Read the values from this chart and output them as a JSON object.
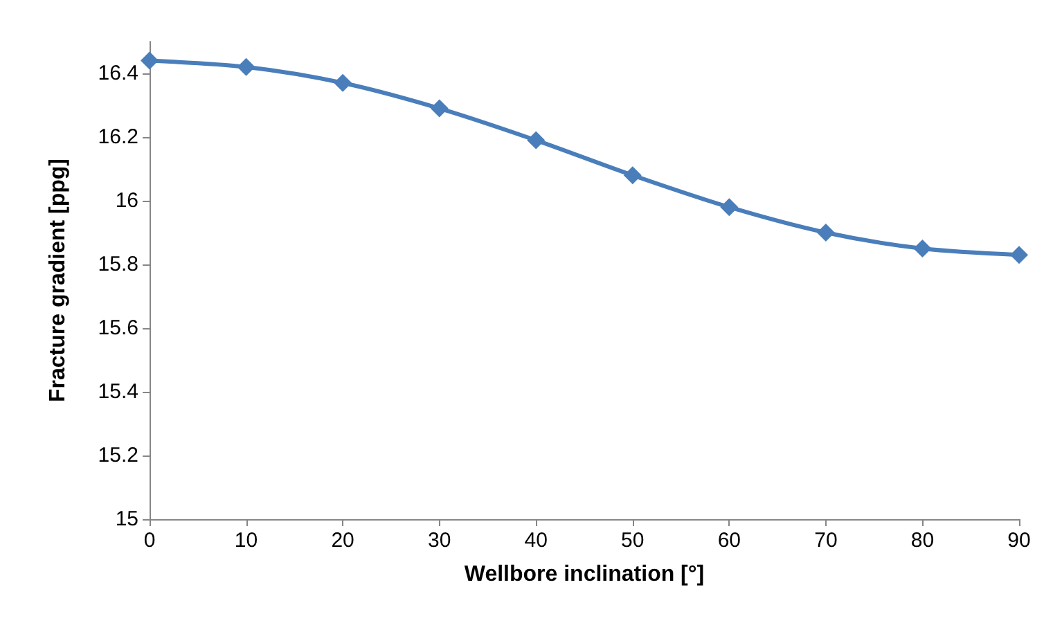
{
  "chart_data": {
    "type": "line",
    "xlabel": "Wellbore inclination [°]",
    "ylabel": "Fracture gradient [ppg]",
    "x": [
      0,
      10,
      20,
      30,
      40,
      50,
      60,
      70,
      80,
      90
    ],
    "series": [
      {
        "color": "#4a7ebb",
        "values": [
          16.44,
          16.42,
          16.37,
          16.29,
          16.19,
          16.08,
          15.98,
          15.9,
          15.85,
          15.83
        ]
      }
    ],
    "xlim": [
      0,
      90
    ],
    "xticks": [
      0,
      10,
      20,
      30,
      40,
      50,
      60,
      70,
      80,
      90
    ],
    "ylim": [
      15,
      16.5
    ],
    "yticks": [
      15,
      15.2,
      15.4,
      15.6,
      15.8,
      16,
      16.2,
      16.4
    ],
    "grid": false,
    "marker": "diamond",
    "line_style": "solid"
  }
}
